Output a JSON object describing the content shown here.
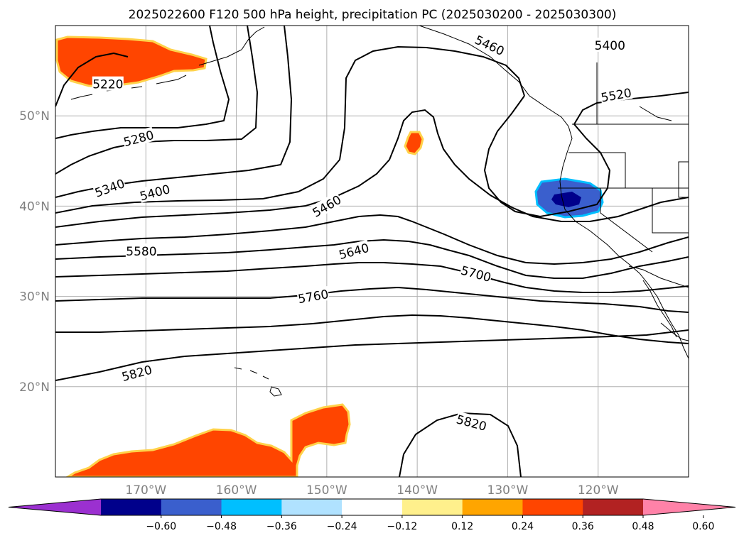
{
  "title": "2025022600 F120 500 hPa height, precipitation PC (2025030200 - 2025030300)",
  "map": {
    "projection": "equirectangular",
    "lon_range": [
      -180,
      -110
    ],
    "lat_range": [
      10,
      60
    ],
    "gridlines": true,
    "lat_ticks": [
      {
        "value": 50,
        "label": "50°N"
      },
      {
        "value": 40,
        "label": "40°N"
      },
      {
        "value": 30,
        "label": "30°N"
      },
      {
        "value": 20,
        "label": "20°N"
      }
    ],
    "lon_ticks": [
      {
        "value": -170,
        "label": "170°W"
      },
      {
        "value": -160,
        "label": "160°W"
      },
      {
        "value": -150,
        "label": "150°W"
      },
      {
        "value": -140,
        "label": "140°W"
      },
      {
        "value": -130,
        "label": "130°W"
      },
      {
        "value": -120,
        "label": "120°W"
      }
    ]
  },
  "contour_labels": [
    {
      "text": "5220",
      "lon": -174.2,
      "lat": 53.5,
      "angle": 0
    },
    {
      "text": "5280",
      "lon": -170.8,
      "lat": 47.5,
      "angle": -15
    },
    {
      "text": "5340",
      "lon": -174.0,
      "lat": 42.0,
      "angle": -20
    },
    {
      "text": "5400",
      "lon": -169.0,
      "lat": 41.5,
      "angle": -15
    },
    {
      "text": "5460",
      "lon": -150.0,
      "lat": 40.0,
      "angle": -30
    },
    {
      "text": "5580",
      "lon": -170.5,
      "lat": 35.0,
      "angle": 0
    },
    {
      "text": "5640",
      "lon": -147.0,
      "lat": 35.0,
      "angle": -15
    },
    {
      "text": "5700",
      "lon": -133.5,
      "lat": 32.5,
      "angle": 15
    },
    {
      "text": "5760",
      "lon": -151.5,
      "lat": 30.0,
      "angle": -10
    },
    {
      "text": "5820",
      "lon": -171.0,
      "lat": 21.5,
      "angle": -15
    },
    {
      "text": "5820",
      "lon": -134.0,
      "lat": 16.0,
      "angle": 15
    },
    {
      "text": "5460",
      "lon": -132.0,
      "lat": 57.8,
      "angle": 25
    },
    {
      "text": "5400",
      "lon": -118.7,
      "lat": 57.8,
      "angle": 0
    },
    {
      "text": "5520",
      "lon": -118.0,
      "lat": 52.3,
      "angle": -10
    }
  ],
  "colorbar": {
    "tick_labels": [
      "−0.60",
      "−0.48",
      "−0.36",
      "−0.24",
      "−0.12",
      "0.12",
      "0.24",
      "0.36",
      "0.48",
      "0.60"
    ],
    "tick_values": [
      -0.6,
      -0.48,
      -0.36,
      -0.24,
      -0.12,
      0.12,
      0.24,
      0.36,
      0.48,
      0.6
    ],
    "min_color": "#9b30d0",
    "max_color": "#ff82a8",
    "colors": [
      "#00008b",
      "#3a5fcd",
      "#00bfff",
      "#b0e2ff",
      "#ffffff",
      "#fff08c",
      "#ffa500",
      "#ff4500",
      "#b22222"
    ],
    "extend": "both"
  }
}
